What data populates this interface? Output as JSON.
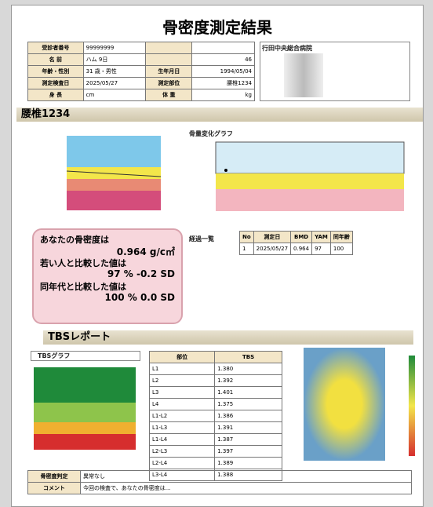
{
  "header": {
    "title": "骨密度測定結果",
    "hospital": "行田中央総合病院"
  },
  "patient": {
    "rows": [
      [
        "受診者番号",
        "99999999",
        "",
        ""
      ],
      [
        "名 前",
        "ハム 9日",
        "",
        "46"
      ],
      [
        "年齢・性別",
        "31 歳・男性",
        "生年月日",
        "1994/05/04"
      ],
      [
        "測定検査日",
        "2025/05/27",
        "測定部位",
        "腰椎1234"
      ],
      [
        "身 長",
        "cm",
        "体 重",
        "kg"
      ]
    ]
  },
  "section": {
    "site": "腰椎1234",
    "trend_title": "骨量変化グラフ",
    "history_title": "経過一覧",
    "tbs_title": "TBSレポート",
    "tbs_graph": "TBSグラフ"
  },
  "result": {
    "lines": [
      "あなたの骨密度は",
      "0.964 g/c㎡",
      "若い人と比較した値は",
      "97 %  -0.2 SD",
      "同年代と比較した値は",
      "100 %  0.0 SD"
    ]
  },
  "history": {
    "header": [
      "No",
      "測定日",
      "BMD",
      "YAM",
      "同年齢"
    ],
    "rows": [
      [
        "1",
        "2025/05/27",
        "0.964",
        "97",
        "100"
      ]
    ]
  },
  "tbs_table": {
    "header": [
      "部位",
      "TBS"
    ],
    "rows": [
      [
        "L1",
        "1.380"
      ],
      [
        "L2",
        "1.392"
      ],
      [
        "L3",
        "1.401"
      ],
      [
        "L4",
        "1.375"
      ],
      [
        "L1-L2",
        "1.386"
      ],
      [
        "L1-L3",
        "1.391"
      ],
      [
        "L1-L4",
        "1.387"
      ],
      [
        "L2-L3",
        "1.397"
      ],
      [
        "L2-L4",
        "1.389"
      ],
      [
        "L3-L4",
        "1.388"
      ]
    ]
  },
  "footer": {
    "judgement_label": "骨密度判定",
    "judgement": "異常なし",
    "comment_label": "コメント",
    "comment": "今回の検査で、あなたの骨密度は..."
  }
}
